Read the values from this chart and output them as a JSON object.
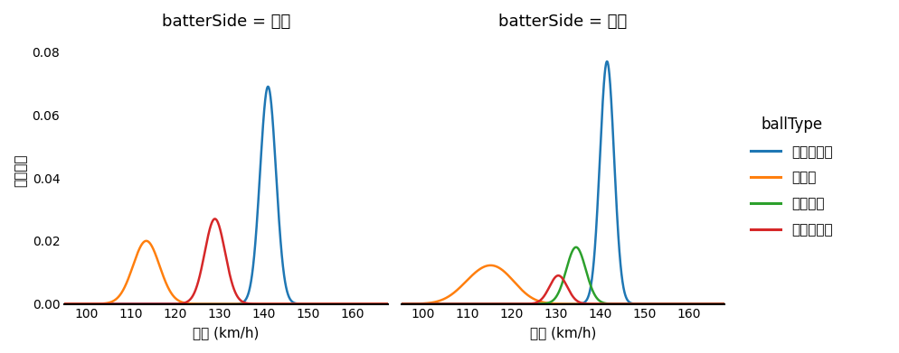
{
  "title_left": "batterSide = 左打",
  "title_right": "batterSide = 右打",
  "xlabel": "球速 (km/h)",
  "ylabel": "確率密度",
  "legend_title": "ballType",
  "legend_entries": [
    "ストレート",
    "カーブ",
    "フォーク",
    "スライダー"
  ],
  "colors": {
    "ストレート": "#1f77b4",
    "カーブ": "#ff7f0e",
    "フォーク": "#2ca02c",
    "スライダー": "#d62728"
  },
  "xlim": [
    95,
    168
  ],
  "ylim": [
    0,
    0.085
  ],
  "yticks": [
    0.0,
    0.02,
    0.04,
    0.06,
    0.08
  ],
  "xticks": [
    100,
    110,
    120,
    130,
    140,
    150,
    160
  ],
  "left_curves": {
    "ストレート": {
      "mean": 141.0,
      "std": 1.8,
      "amp": 0.069
    },
    "カーブ": {
      "mean": 113.5,
      "std": 3.0,
      "amp": 0.02
    },
    "スライダー": {
      "mean": 129.0,
      "std": 2.3,
      "amp": 0.027
    }
  },
  "right_curves": {
    "ストレート": {
      "mean": 141.5,
      "std": 1.6,
      "amp": 0.077
    },
    "カーブ": [
      {
        "mean": 113.0,
        "std": 4.5,
        "amp": 0.0085
      },
      {
        "mean": 118.0,
        "std": 4.0,
        "amp": 0.006
      }
    ],
    "フォーク": {
      "mean": 134.5,
      "std": 2.2,
      "amp": 0.018
    },
    "スライダー": {
      "mean": 130.5,
      "std": 2.0,
      "amp": 0.009
    }
  },
  "background_color": "#ffffff",
  "figsize": [
    9.95,
    3.91
  ],
  "dpi": 100
}
